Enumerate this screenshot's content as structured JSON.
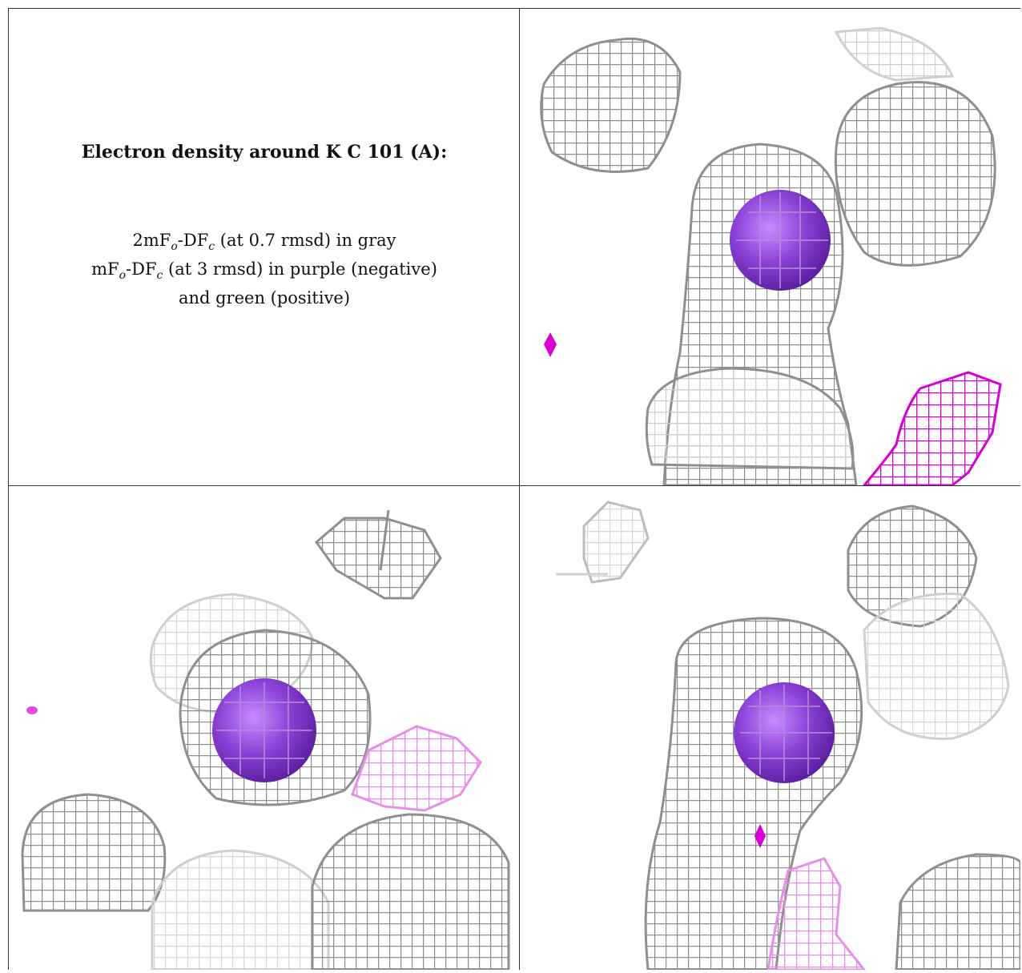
{
  "caption": {
    "title": "Electron density around K C 101 (A):",
    "line1": {
      "a": "2mF",
      "b": "o",
      "c": "-DF",
      "d": "c",
      "e": " (at 0.7 rmsd) in gray"
    },
    "line2": {
      "a": "mF",
      "b": "o",
      "c": "-DF",
      "d": "c",
      "e": " (at 3 rmsd) in purple (negative)"
    },
    "line3": "and green (positive)"
  },
  "colors": {
    "mesh_gray": "#8f8f8f",
    "mesh_light": "#cfcfcf",
    "mesh_magenta": "#d400d4",
    "mesh_pink": "#e88ee8",
    "atom_purple": "#8a3fd6"
  },
  "panels": [
    "view-1",
    "view-2",
    "view-3"
  ]
}
